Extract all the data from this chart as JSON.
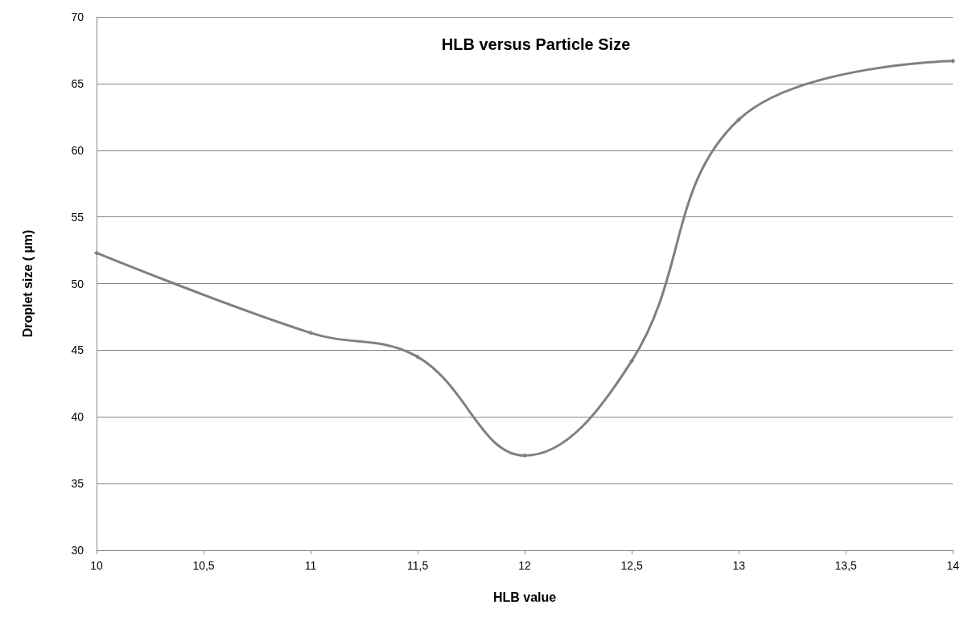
{
  "chart_data": {
    "type": "line",
    "title": "HLB versus Particle Size",
    "xlabel": "HLB value",
    "ylabel": "Droplet size ( µm)",
    "x": [
      10,
      11,
      11.5,
      12,
      12.5,
      13,
      14
    ],
    "series": [
      {
        "color": "#808080",
        "values": [
          52.3,
          46.3,
          44.5,
          37.1,
          44.2,
          62.3,
          66.7
        ]
      }
    ],
    "xlim": [
      10,
      14
    ],
    "xticks": [
      10,
      {
        "value": 10.5,
        "label": "10,5"
      },
      11,
      {
        "value": 11.5,
        "label": "11,5"
      },
      12,
      {
        "value": 12.5,
        "label": "12,5"
      },
      13,
      {
        "value": 13.5,
        "label": "13,5"
      },
      14
    ],
    "ylim": [
      30,
      70
    ],
    "yticks": [
      30,
      35,
      40,
      45,
      50,
      55,
      60,
      65,
      70
    ],
    "grid": "y",
    "marker": "diamond",
    "line_style": "solid"
  }
}
